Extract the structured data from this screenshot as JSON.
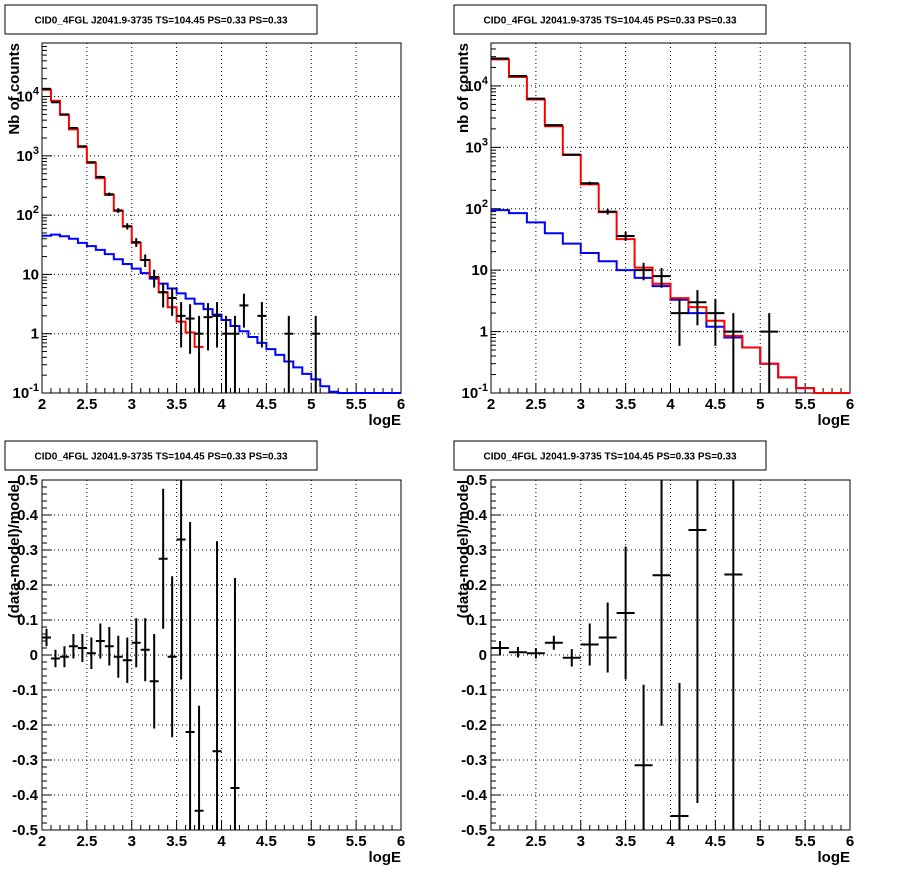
{
  "colors": {
    "data": "#000000",
    "total_model": "#ff0000",
    "source_model": "#0000ff",
    "grid": "#000000"
  },
  "chart_data": [
    {
      "type": "line",
      "title": "CID0_4FGL J2041.9-3735 TS=104.45 PS=0.33 PS=0.33",
      "xlabel": "logE",
      "ylabel": "Nb of counts",
      "yscale": "log",
      "xlim": [
        2,
        6
      ],
      "ylim": [
        0.1,
        80000
      ],
      "grid": true,
      "x_ticks": [
        "2",
        "2.5",
        "3",
        "3.5",
        "4",
        "4.5",
        "5",
        "5.5",
        "6"
      ],
      "y_ticks": [
        "10^-1",
        "1",
        "10",
        "10^2",
        "10^3",
        "10^4"
      ],
      "bin_edges": [
        2.0,
        2.1,
        2.2,
        2.3,
        2.4,
        2.5,
        2.6,
        2.7,
        2.8,
        2.9,
        3.0,
        3.1,
        3.2,
        3.3,
        3.4,
        3.5,
        3.6,
        3.7,
        3.8,
        3.9,
        4.0,
        4.1,
        4.2,
        4.3,
        4.4,
        4.5,
        4.6,
        4.7,
        4.8,
        4.9,
        5.0,
        5.1,
        5.2,
        5.3,
        5.4,
        5.5,
        5.6,
        5.7,
        5.8,
        5.9,
        6.0
      ],
      "series": [
        {
          "name": "",
          "role": "total_model",
          "values": [
            13000,
            8500,
            4900,
            2800,
            1400,
            760,
            420,
            220,
            118,
            64,
            34,
            17.5,
            9,
            5,
            2.8,
            1.6,
            1.05,
            0.6
          ],
          "note_values_start": 2.0
        },
        {
          "name": "",
          "role": "source_model",
          "values": [
            45,
            47,
            44,
            40,
            34,
            30,
            26,
            22,
            18,
            15,
            12.5,
            10.5,
            8.5,
            7,
            5.8,
            4.8,
            3.9,
            3.2,
            2.6,
            2.1,
            1.7,
            1.35,
            1.1,
            0.88,
            0.7,
            0.55,
            0.44,
            0.34,
            0.27,
            0.21,
            0.17,
            0.13,
            0.105,
            0.1,
            0.1,
            0.1,
            0.1,
            0.1,
            0.1,
            0.1
          ]
        },
        {
          "name": "",
          "role": "data",
          "x": [
            2.05,
            2.15,
            2.25,
            2.35,
            2.45,
            2.55,
            2.65,
            2.75,
            2.85,
            2.95,
            3.05,
            3.15,
            3.25,
            3.35,
            3.45,
            3.55,
            3.65,
            3.75,
            3.85,
            3.95,
            4.05,
            4.15,
            4.25,
            4.45,
            4.75,
            5.05
          ],
          "y": [
            13500,
            8000,
            5000,
            2950,
            1450,
            780,
            440,
            225,
            120,
            65,
            35,
            17.5,
            9,
            5,
            4,
            2,
            1.8,
            1,
            1.9,
            2,
            1,
            1,
            3,
            2,
            1,
            1
          ]
        }
      ],
      "total_model_full": [
        13000,
        8500,
        4900,
        2800,
        1400,
        760,
        420,
        220,
        118,
        64,
        34,
        17.5,
        9,
        5,
        2.8,
        1.6,
        1.05,
        0.6,
        0.45,
        0.35,
        0.28,
        0.22,
        0.18,
        0.15,
        0.12,
        0.1,
        0.1,
        0.1,
        0.1,
        0.1,
        0.1,
        0.1,
        0.1,
        0.1,
        0.1,
        0.1,
        0.1,
        0.1,
        0.1,
        0.1
      ]
    },
    {
      "type": "line",
      "title": "CID0_4FGL J2041.9-3735 TS=104.45 PS=0.33 PS=0.33",
      "xlabel": "logE",
      "ylabel": "nb of counts",
      "yscale": "log",
      "xlim": [
        2,
        6
      ],
      "ylim": [
        0.1,
        50000
      ],
      "grid": true,
      "x_ticks": [
        "2",
        "2.5",
        "3",
        "3.5",
        "4",
        "4.5",
        "5",
        "5.5",
        "6"
      ],
      "y_ticks": [
        "10^-1",
        "1",
        "10",
        "10^2",
        "10^3",
        "10^4"
      ],
      "bin_edges": [
        2.0,
        2.2,
        2.4,
        2.6,
        2.8,
        3.0,
        3.2,
        3.4,
        3.6,
        3.8,
        4.0,
        4.2,
        4.4,
        4.6,
        4.8,
        5.0,
        5.2,
        5.4,
        5.6,
        5.8,
        6.0
      ],
      "series": [
        {
          "name": "",
          "role": "total_model",
          "values": [
            27000,
            14000,
            6000,
            2200,
            750,
            250,
            88,
            32,
            11,
            6,
            3.5,
            2.5,
            1.5,
            0.85,
            0.55,
            0.3,
            0.18,
            0.12,
            0.1,
            0.1
          ]
        },
        {
          "name": "",
          "role": "source_model",
          "values": [
            95,
            85,
            60,
            40,
            27,
            19,
            14,
            10,
            7.5,
            5.5,
            3.3,
            2,
            1.2,
            0.8,
            0.55,
            0.3,
            0.18,
            0.12,
            0.1,
            0.1
          ]
        },
        {
          "name": "",
          "role": "data",
          "x": [
            2.1,
            2.3,
            2.5,
            2.7,
            2.9,
            3.1,
            3.3,
            3.5,
            3.7,
            3.9,
            4.1,
            4.3,
            4.5,
            4.7,
            5.1
          ],
          "y": [
            28000,
            14500,
            6200,
            2300,
            760,
            260,
            90,
            36,
            10,
            8,
            2,
            3,
            2,
            1,
            1
          ]
        }
      ]
    },
    {
      "type": "scatter",
      "title": "CID0_4FGL J2041.9-3735 TS=104.45 PS=0.33 PS=0.33",
      "xlabel": "logE",
      "ylabel": "(data-model)/model",
      "xlim": [
        2,
        6
      ],
      "ylim": [
        -0.5,
        0.5
      ],
      "grid": true,
      "x_ticks": [
        "2",
        "2.5",
        "3",
        "3.5",
        "4",
        "4.5",
        "5",
        "5.5",
        "6"
      ],
      "y_ticks": [
        "-0.5",
        "-0.4",
        "-0.3",
        "-0.2",
        "-0.1",
        "0",
        "0.1",
        "0.2",
        "0.3",
        "0.4",
        "0.5"
      ],
      "series": [
        {
          "name": "",
          "role": "data",
          "x": [
            2.05,
            2.15,
            2.25,
            2.35,
            2.45,
            2.55,
            2.65,
            2.75,
            2.85,
            2.95,
            3.05,
            3.15,
            3.25,
            3.35,
            3.45,
            3.55,
            3.65,
            3.75,
            3.95,
            4.15
          ],
          "y": [
            0.05,
            -0.01,
            -0.005,
            0.025,
            0.02,
            0.005,
            0.04,
            0.025,
            -0.005,
            -0.015,
            0.035,
            0.015,
            -0.075,
            0.275,
            -0.005,
            0.33,
            -0.22,
            -0.445,
            -0.275,
            -0.38
          ],
          "err": [
            0.025,
            0.025,
            0.03,
            0.035,
            0.04,
            0.045,
            0.05,
            0.055,
            0.06,
            0.065,
            0.07,
            0.09,
            0.135,
            0.2,
            0.23,
            0.4,
            0.6,
            0.3,
            0.6,
            0.6
          ]
        }
      ]
    },
    {
      "type": "scatter",
      "title": "CID0_4FGL J2041.9-3735 TS=104.45 PS=0.33 PS=0.33",
      "xlabel": "logE",
      "ylabel": "(data-model)/model",
      "xlim": [
        2,
        6
      ],
      "ylim": [
        -0.5,
        0.5
      ],
      "grid": true,
      "x_ticks": [
        "2",
        "2.5",
        "3",
        "3.5",
        "4",
        "4.5",
        "5",
        "5.5",
        "6"
      ],
      "y_ticks": [
        "-0.5",
        "-0.4",
        "-0.3",
        "-0.2",
        "-0.1",
        "0",
        "0.1",
        "0.2",
        "0.3",
        "0.4",
        "0.5"
      ],
      "series": [
        {
          "name": "",
          "role": "data",
          "x": [
            2.1,
            2.3,
            2.5,
            2.7,
            2.9,
            3.1,
            3.3,
            3.5,
            3.7,
            3.9,
            4.1,
            4.3,
            4.7
          ],
          "y": [
            0.02,
            0.008,
            0.005,
            0.035,
            -0.008,
            0.03,
            0.05,
            0.12,
            -0.315,
            0.228,
            -0.46,
            0.357,
            0.23
          ],
          "err": [
            0.02,
            0.015,
            0.015,
            0.02,
            0.025,
            0.06,
            0.1,
            0.19,
            0.23,
            0.43,
            0.38,
            0.78,
            1.0
          ]
        }
      ]
    }
  ]
}
